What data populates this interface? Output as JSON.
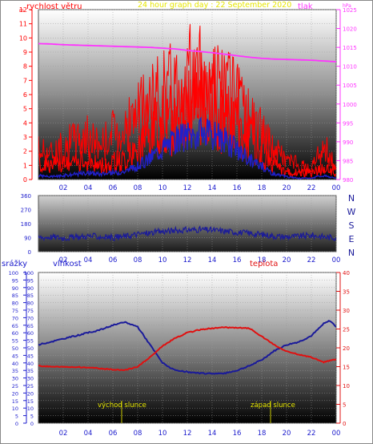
{
  "header": {
    "left_label": "rychlost větru",
    "title": "24 hour graph day : 22 September 2020",
    "right_label": "tlak"
  },
  "top_panel": {
    "left_axis_ticks": [
      "0",
      "1",
      "2",
      "3",
      "4",
      "5",
      "6",
      "7",
      "8",
      "9",
      "10",
      "11",
      "12"
    ],
    "right_axis_ticks": [
      "980",
      "985",
      "990",
      "995",
      "1000",
      "1005",
      "1010",
      "1015",
      "1020",
      "1025"
    ],
    "left_unit_mark": "m",
    "right_unit_mark": "hPa"
  },
  "middle_panel": {
    "left_axis_ticks": [
      "0",
      "90",
      "180",
      "270",
      "360"
    ],
    "compass_labels": [
      "N",
      "W",
      "S",
      "E",
      "N"
    ]
  },
  "bottom_panel": {
    "rain_label": "srážky",
    "humidity_label": "vlhkost",
    "temperature_label": "teplota",
    "rain_ticks": [
      "0",
      "5",
      "10",
      "15",
      "20",
      "25",
      "30",
      "35",
      "40",
      "45",
      "50",
      "55",
      "60",
      "65",
      "70",
      "75",
      "80",
      "85",
      "90",
      "95",
      "100"
    ],
    "humidity_ticks": [
      "0",
      "5",
      "10",
      "15",
      "20",
      "25",
      "30",
      "35",
      "40",
      "45",
      "50",
      "55",
      "60",
      "65",
      "70",
      "75",
      "80",
      "85",
      "90",
      "95",
      "100"
    ],
    "temp_ticks": [
      "0",
      "5",
      "10",
      "15",
      "20",
      "25",
      "30",
      "35",
      "40"
    ],
    "sunrise_label": "východ slunce",
    "sunset_label": "západ slunce"
  },
  "hour_ticks": [
    "02",
    "04",
    "06",
    "08",
    "10",
    "12",
    "14",
    "16",
    "18",
    "20",
    "22",
    "00"
  ],
  "colors": {
    "wind": "#ff0000",
    "gust": "#ff0000",
    "wind_avg": "#2020c8",
    "pressure": "#ff33ff",
    "direction": "#1a1a9a",
    "humidity": "#1a1a9a",
    "temperature": "#e01010",
    "sun_marker": "#c8c800",
    "title": "#e6e600",
    "axis_blue": "#1a1acc"
  },
  "chart_data": [
    {
      "type": "line",
      "title": "24 hour graph day : 22 September 2020",
      "x_unit": "hour",
      "xlim": [
        0,
        24
      ],
      "y_left_label": "rychlost větru",
      "y_right_label": "tlak",
      "ylim_left": [
        0,
        12
      ],
      "ylim_right": [
        980,
        1025
      ],
      "series": [
        {
          "name": "rychlost větru",
          "axis": "left",
          "x": [
            0,
            1,
            2,
            3,
            4,
            5,
            6,
            7,
            8,
            9,
            10,
            11,
            12,
            13,
            14,
            15,
            16,
            17,
            18,
            19,
            20,
            21,
            22,
            23,
            24
          ],
          "values": [
            1.5,
            1.2,
            1.3,
            1.5,
            1.6,
            1.3,
            1.5,
            1.8,
            2.5,
            3.6,
            4.8,
            5.5,
            6.3,
            6.5,
            6.3,
            5.5,
            4.6,
            3.6,
            2.4,
            1.3,
            0.7,
            0.6,
            0.6,
            1.0,
            0.6
          ]
        },
        {
          "name": "",
          "axis": "left",
          "x": [
            0,
            1,
            2,
            3,
            4,
            5,
            6,
            7,
            8,
            9,
            10,
            11,
            12,
            13,
            14,
            15,
            16,
            17,
            18,
            19,
            20,
            21,
            22,
            23,
            24
          ],
          "values": [
            3.0,
            2.6,
            3.2,
            4.0,
            4.2,
            3.4,
            4.6,
            5.0,
            6.5,
            7.4,
            8.8,
            9.4,
            10.2,
            10.0,
            9.6,
            9.0,
            7.6,
            6.2,
            4.6,
            3.0,
            2.0,
            1.4,
            1.0,
            3.4,
            1.2
          ]
        },
        {
          "name": "",
          "axis": "left",
          "x": [
            0,
            1,
            2,
            3,
            4,
            5,
            6,
            7,
            8,
            9,
            10,
            11,
            12,
            13,
            14,
            15,
            16,
            17,
            18,
            19,
            20,
            21,
            22,
            23,
            24
          ],
          "values": [
            0.3,
            0.2,
            0.3,
            0.4,
            0.5,
            0.4,
            0.5,
            0.6,
            1.0,
            1.6,
            2.4,
            2.9,
            3.3,
            3.4,
            3.3,
            2.9,
            2.2,
            1.5,
            1.0,
            0.4,
            0.2,
            0.1,
            0.1,
            0.3,
            0.1
          ]
        },
        {
          "name": "tlak",
          "axis": "right",
          "x": [
            0,
            1,
            2,
            3,
            4,
            5,
            6,
            7,
            8,
            9,
            10,
            11,
            12,
            13,
            14,
            15,
            16,
            17,
            18,
            19,
            20,
            21,
            22,
            23,
            24
          ],
          "values": [
            1016.0,
            1015.9,
            1015.7,
            1015.6,
            1015.5,
            1015.4,
            1015.3,
            1015.2,
            1015.1,
            1015.0,
            1014.8,
            1014.6,
            1014.2,
            1013.9,
            1013.6,
            1013.2,
            1012.8,
            1012.4,
            1012.1,
            1011.9,
            1011.8,
            1011.7,
            1011.6,
            1011.4,
            1011.2
          ]
        }
      ]
    },
    {
      "type": "line",
      "x_unit": "hour",
      "xlim": [
        0,
        24
      ],
      "ylim": [
        0,
        360
      ],
      "series": [
        {
          "name": "",
          "x": [
            0,
            1,
            2,
            3,
            4,
            5,
            6,
            7,
            8,
            9,
            10,
            11,
            12,
            13,
            14,
            15,
            16,
            17,
            18,
            19,
            20,
            21,
            22,
            23,
            24
          ],
          "values": [
            90,
            95,
            88,
            92,
            100,
            96,
            90,
            98,
            112,
            120,
            130,
            135,
            140,
            142,
            138,
            132,
            125,
            118,
            110,
            100,
            95,
            98,
            105,
            95,
            90
          ]
        }
      ]
    },
    {
      "type": "line",
      "x_unit": "hour",
      "xlim": [
        0,
        24
      ],
      "ylim_left": [
        0,
        100
      ],
      "ylim_right": [
        0,
        40
      ],
      "series": [
        {
          "name": "vlhkost",
          "axis": "left",
          "x": [
            0,
            1,
            2,
            3,
            4,
            5,
            6,
            7,
            8,
            9,
            10,
            11,
            12,
            13,
            14,
            15,
            16,
            17,
            18,
            19,
            20,
            21,
            22,
            23,
            23.5,
            24
          ],
          "values": [
            52,
            54,
            56,
            58,
            60,
            62,
            65,
            67,
            64,
            52,
            40,
            35,
            34,
            33,
            33,
            33,
            35,
            38,
            42,
            48,
            52,
            54,
            58,
            66,
            68,
            64
          ]
        },
        {
          "name": "teplota",
          "axis": "right",
          "x": [
            0,
            1,
            2,
            3,
            4,
            5,
            6,
            7,
            8,
            9,
            10,
            11,
            12,
            13,
            14,
            15,
            16,
            17,
            18,
            19,
            20,
            21,
            22,
            23,
            24
          ],
          "values": [
            15.2,
            15.0,
            14.9,
            14.9,
            14.8,
            14.5,
            14.2,
            14.1,
            15.0,
            17.5,
            20.5,
            22.5,
            24.0,
            24.8,
            25.2,
            25.4,
            25.3,
            25.2,
            23.0,
            20.8,
            19.0,
            18.2,
            17.5,
            16.2,
            17.0
          ]
        }
      ]
    }
  ]
}
